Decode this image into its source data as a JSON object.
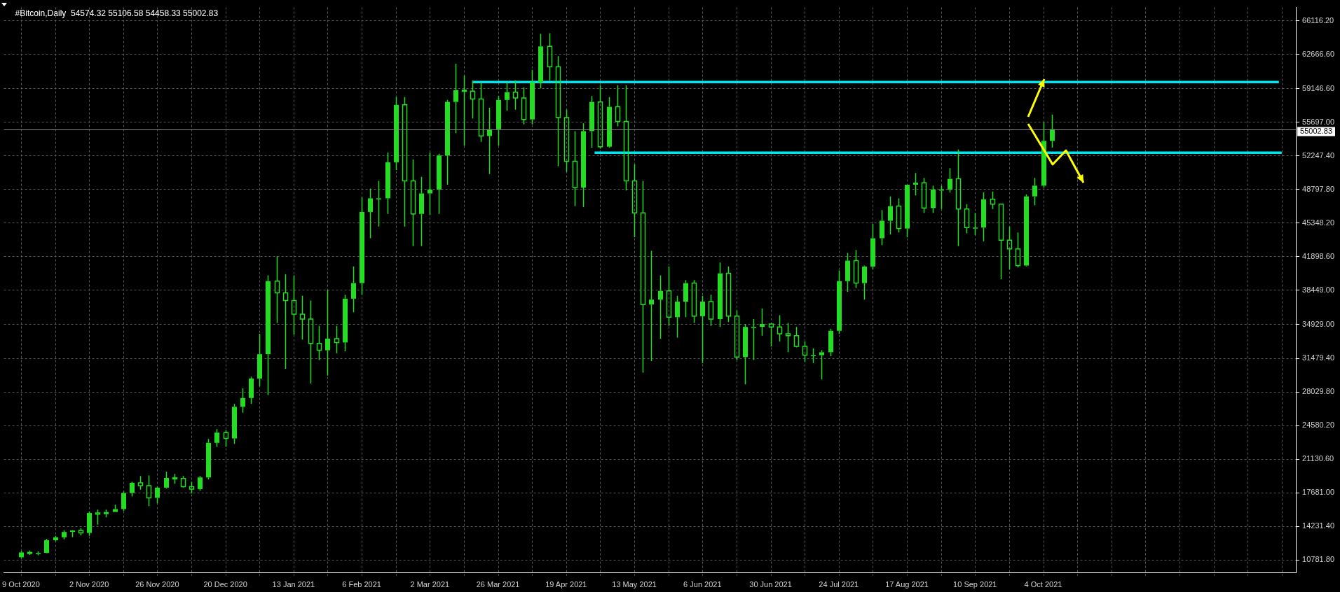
{
  "chart_data": {
    "type": "candlestick",
    "title": "#Bitcoin,Daily  54574.32 55106.58 54458.33 55002.83",
    "color": "#22dd22",
    "x": [
      "2020-10-09",
      "2020-10-12",
      "2020-10-15",
      "2020-10-18",
      "2020-10-21",
      "2020-10-24",
      "2020-10-27",
      "2020-10-30",
      "2020-11-02",
      "2020-11-05",
      "2020-11-08",
      "2020-11-11",
      "2020-11-14",
      "2020-11-17",
      "2020-11-20",
      "2020-11-23",
      "2020-11-26",
      "2020-11-29",
      "2020-12-02",
      "2020-12-05",
      "2020-12-08",
      "2020-12-11",
      "2020-12-14",
      "2020-12-17",
      "2020-12-20",
      "2020-12-23",
      "2020-12-26",
      "2020-12-29",
      "2021-01-01",
      "2021-01-04",
      "2021-01-07",
      "2021-01-10",
      "2021-01-13",
      "2021-01-16",
      "2021-01-19",
      "2021-01-22",
      "2021-01-25",
      "2021-01-28",
      "2021-01-31",
      "2021-02-03",
      "2021-02-06",
      "2021-02-09",
      "2021-02-12",
      "2021-02-15",
      "2021-02-18",
      "2021-02-21",
      "2021-02-24",
      "2021-02-27",
      "2021-03-02",
      "2021-03-05",
      "2021-03-08",
      "2021-03-11",
      "2021-03-14",
      "2021-03-17",
      "2021-03-20",
      "2021-03-23",
      "2021-03-26",
      "2021-03-29",
      "2021-04-01",
      "2021-04-04",
      "2021-04-07",
      "2021-04-10",
      "2021-04-13",
      "2021-04-16",
      "2021-04-19",
      "2021-04-22",
      "2021-04-25",
      "2021-04-28",
      "2021-05-01",
      "2021-05-04",
      "2021-05-07",
      "2021-05-10",
      "2021-05-13",
      "2021-05-16",
      "2021-05-19",
      "2021-05-22",
      "2021-05-25",
      "2021-05-28",
      "2021-05-31",
      "2021-06-03",
      "2021-06-06",
      "2021-06-09",
      "2021-06-12",
      "2021-06-15",
      "2021-06-18",
      "2021-06-21",
      "2021-06-24",
      "2021-06-27",
      "2021-06-30",
      "2021-07-03",
      "2021-07-06",
      "2021-07-09",
      "2021-07-12",
      "2021-07-15",
      "2021-07-18",
      "2021-07-21",
      "2021-07-24",
      "2021-07-27",
      "2021-07-30",
      "2021-08-02",
      "2021-08-05",
      "2021-08-08",
      "2021-08-11",
      "2021-08-14",
      "2021-08-17",
      "2021-08-20",
      "2021-08-23",
      "2021-08-26",
      "2021-08-29",
      "2021-09-01",
      "2021-09-04",
      "2021-09-07",
      "2021-09-10",
      "2021-09-13",
      "2021-09-16",
      "2021-09-19",
      "2021-09-22",
      "2021-09-25",
      "2021-09-28",
      "2021-10-01",
      "2021-10-04",
      "2021-10-07"
    ],
    "ohlc": [
      [
        11050,
        11700,
        10950,
        11550
      ],
      [
        11550,
        11750,
        11300,
        11500
      ],
      [
        11500,
        11650,
        11250,
        11500
      ],
      [
        11500,
        12950,
        11450,
        12800
      ],
      [
        12800,
        13250,
        12700,
        13100
      ],
      [
        13100,
        13800,
        12900,
        13650
      ],
      [
        13650,
        13850,
        13100,
        13800
      ],
      [
        13800,
        14050,
        13300,
        13550
      ],
      [
        13550,
        15750,
        13250,
        15600
      ],
      [
        15600,
        15950,
        14400,
        15480
      ],
      [
        15480,
        15950,
        15150,
        15700
      ],
      [
        15700,
        16450,
        15700,
        16000
      ],
      [
        16000,
        17800,
        15800,
        17650
      ],
      [
        17650,
        18800,
        17300,
        18700
      ],
      [
        18700,
        19400,
        18000,
        18400
      ],
      [
        18400,
        19450,
        16300,
        17150
      ],
      [
        17150,
        18300,
        16600,
        18200
      ],
      [
        18200,
        19850,
        18100,
        19200
      ],
      [
        19200,
        19600,
        18600,
        19150
      ],
      [
        19150,
        19400,
        18200,
        18300
      ],
      [
        18300,
        18800,
        17600,
        18050
      ],
      [
        18050,
        19400,
        17900,
        19250
      ],
      [
        19250,
        23200,
        19050,
        22800
      ],
      [
        22800,
        24200,
        22400,
        23850
      ],
      [
        23850,
        24100,
        22400,
        23250
      ],
      [
        23250,
        26800,
        22700,
        26500
      ],
      [
        26500,
        28400,
        25900,
        27400
      ],
      [
        27400,
        29600,
        26800,
        29400
      ],
      [
        29400,
        34000,
        28600,
        31900
      ],
      [
        31900,
        40000,
        27700,
        39400
      ],
      [
        39400,
        41950,
        35100,
        38200
      ],
      [
        38200,
        40100,
        30400,
        37400
      ],
      [
        37400,
        40000,
        33900,
        36000
      ],
      [
        36000,
        37900,
        33400,
        35500
      ],
      [
        35500,
        37400,
        28900,
        33000
      ],
      [
        33000,
        34800,
        31300,
        32300
      ],
      [
        32300,
        38500,
        29700,
        33500
      ],
      [
        33500,
        34800,
        32000,
        33100
      ],
      [
        33100,
        38000,
        32200,
        37600
      ],
      [
        37600,
        40900,
        36200,
        39200
      ],
      [
        39200,
        48000,
        38000,
        46500
      ],
      [
        46500,
        48900,
        43800,
        47900
      ],
      [
        47900,
        49700,
        45000,
        47900
      ],
      [
        47900,
        52600,
        46300,
        51600
      ],
      [
        51600,
        58300,
        50800,
        57500
      ],
      [
        57500,
        58300,
        45000,
        49700
      ],
      [
        49700,
        51900,
        43000,
        46300
      ],
      [
        46300,
        50100,
        43000,
        48400
      ],
      [
        48400,
        52600,
        46200,
        48800
      ],
      [
        48800,
        52500,
        46300,
        52300
      ],
      [
        52300,
        58000,
        49300,
        57800
      ],
      [
        57800,
        61700,
        54600,
        59000
      ],
      [
        59000,
        60500,
        53300,
        58900
      ],
      [
        58900,
        60000,
        56100,
        58100
      ],
      [
        58100,
        59800,
        53700,
        54300
      ],
      [
        54300,
        57200,
        50400,
        55000
      ],
      [
        55000,
        58400,
        53300,
        58000
      ],
      [
        58000,
        59800,
        56900,
        58800
      ],
      [
        58800,
        60000,
        57000,
        58200
      ],
      [
        58200,
        59300,
        55500,
        56000
      ],
      [
        56000,
        61100,
        55500,
        59800
      ],
      [
        59800,
        64800,
        59200,
        63500
      ],
      [
        63500,
        64850,
        60000,
        61400
      ],
      [
        61400,
        62500,
        51200,
        56200
      ],
      [
        56200,
        57000,
        50600,
        51700
      ],
      [
        51700,
        54800,
        47100,
        49000
      ],
      [
        49000,
        55600,
        47000,
        54800
      ],
      [
        54800,
        58400,
        53100,
        57800
      ],
      [
        57800,
        59500,
        53000,
        53200
      ],
      [
        53200,
        58300,
        53100,
        57300
      ],
      [
        57300,
        59500,
        55300,
        55800
      ],
      [
        55800,
        59500,
        48700,
        49700
      ],
      [
        49700,
        51400,
        43900,
        46400
      ],
      [
        46400,
        49700,
        30000,
        37000
      ],
      [
        37000,
        42500,
        31200,
        37500
      ],
      [
        37500,
        40000,
        33500,
        38400
      ],
      [
        38400,
        40900,
        34800,
        35700
      ],
      [
        35700,
        37900,
        33600,
        37300
      ],
      [
        37300,
        39500,
        35700,
        39200
      ],
      [
        39200,
        39500,
        35100,
        35800
      ],
      [
        35800,
        37900,
        31000,
        37300
      ],
      [
        37300,
        38000,
        34800,
        35500
      ],
      [
        35500,
        41300,
        34700,
        40200
      ],
      [
        40200,
        40900,
        35200,
        35800
      ],
      [
        35800,
        36400,
        31300,
        31600
      ],
      [
        31600,
        35000,
        28800,
        34700
      ],
      [
        34700,
        35500,
        31300,
        34700
      ],
      [
        34700,
        36600,
        33800,
        35000
      ],
      [
        35000,
        35000,
        32700,
        34700
      ],
      [
        34700,
        35900,
        33200,
        34000
      ],
      [
        34000,
        35100,
        32100,
        33800
      ],
      [
        33800,
        34700,
        32600,
        32700
      ],
      [
        32700,
        33200,
        31100,
        31800
      ],
      [
        31800,
        32500,
        31000,
        31800
      ],
      [
        31800,
        32300,
        29300,
        32100
      ],
      [
        32100,
        34500,
        31700,
        34300
      ],
      [
        34300,
        40500,
        34000,
        39400
      ],
      [
        39400,
        42300,
        38300,
        41500
      ],
      [
        41500,
        42600,
        38700,
        39200
      ],
      [
        39200,
        41000,
        37500,
        40900
      ],
      [
        40900,
        45300,
        40600,
        43800
      ],
      [
        43800,
        46700,
        43100,
        45600
      ],
      [
        45600,
        48100,
        44200,
        47100
      ],
      [
        47100,
        47900,
        44400,
        44800
      ],
      [
        44800,
        49300,
        43900,
        49300
      ],
      [
        49300,
        50500,
        48200,
        49500
      ],
      [
        49500,
        50000,
        46400,
        46900
      ],
      [
        46900,
        49200,
        46400,
        48800
      ],
      [
        48800,
        49200,
        46800,
        48800
      ],
      [
        48800,
        51000,
        48500,
        49900
      ],
      [
        49900,
        52900,
        43000,
        46800
      ],
      [
        46800,
        47300,
        44300,
        44900
      ],
      [
        44900,
        46400,
        44100,
        44900
      ],
      [
        44900,
        48500,
        43500,
        47800
      ],
      [
        47800,
        48600,
        46800,
        47300
      ],
      [
        47300,
        47300,
        39600,
        43600
      ],
      [
        43600,
        45000,
        40600,
        42700
      ],
      [
        42700,
        44400,
        40800,
        41000
      ],
      [
        41000,
        48300,
        40900,
        48100
      ],
      [
        48100,
        50000,
        47200,
        49200
      ],
      [
        49200,
        55700,
        49000,
        53800
      ],
      [
        53800,
        56500,
        53100,
        55002.83
      ]
    ],
    "series": [
      {
        "type": "line",
        "color": "#00e5ee",
        "x": [
          "2021-03-17",
          "2021-12-26"
        ],
        "values": [
          59830,
          59830
        ]
      },
      {
        "type": "line",
        "color": "#00e5ee",
        "x": [
          "2021-04-29",
          "2021-12-27"
        ],
        "values": [
          52590,
          52590
        ]
      }
    ],
    "ref_lines": [
      {
        "axis": "y",
        "value": 55002.83,
        "label": "55002.83",
        "color": "#8a8a8a"
      }
    ],
    "xlim": [
      "2020-10-03",
      "2022-01-01"
    ],
    "xticks": [
      {
        "value": "2020-10-09",
        "label": "9 Oct 2020"
      },
      {
        "value": "2020-10-21",
        "label": null
      },
      {
        "value": "2020-11-02",
        "label": "2 Nov 2020"
      },
      {
        "value": "2020-11-14",
        "label": null
      },
      {
        "value": "2020-11-26",
        "label": "26 Nov 2020"
      },
      {
        "value": "2020-12-08",
        "label": null
      },
      {
        "value": "2020-12-20",
        "label": "20 Dec 2020"
      },
      {
        "value": "2021-01-01",
        "label": null
      },
      {
        "value": "2021-01-13",
        "label": "13 Jan 2021"
      },
      {
        "value": "2021-01-25",
        "label": null
      },
      {
        "value": "2021-02-06",
        "label": "6 Feb 2021"
      },
      {
        "value": "2021-02-18",
        "label": null
      },
      {
        "value": "2021-03-02",
        "label": "2 Mar 2021"
      },
      {
        "value": "2021-03-14",
        "label": null
      },
      {
        "value": "2021-03-26",
        "label": "26 Mar 2021"
      },
      {
        "value": "2021-04-07",
        "label": null
      },
      {
        "value": "2021-04-19",
        "label": "19 Apr 2021"
      },
      {
        "value": "2021-05-01",
        "label": null
      },
      {
        "value": "2021-05-13",
        "label": "13 May 2021"
      },
      {
        "value": "2021-05-25",
        "label": null
      },
      {
        "value": "2021-06-06",
        "label": "6 Jun 2021"
      },
      {
        "value": "2021-06-18",
        "label": null
      },
      {
        "value": "2021-06-30",
        "label": "30 Jun 2021"
      },
      {
        "value": "2021-07-12",
        "label": null
      },
      {
        "value": "2021-07-24",
        "label": "24 Jul 2021"
      },
      {
        "value": "2021-08-05",
        "label": null
      },
      {
        "value": "2021-08-17",
        "label": "17 Aug 2021"
      },
      {
        "value": "2021-08-29",
        "label": null
      },
      {
        "value": "2021-09-10",
        "label": "10 Sep 2021"
      },
      {
        "value": "2021-09-22",
        "label": null
      },
      {
        "value": "2021-10-04",
        "label": "4 Oct 2021"
      },
      {
        "value": "2021-10-16",
        "label": null
      },
      {
        "value": "2021-10-28",
        "label": null
      },
      {
        "value": "2021-11-09",
        "label": null
      },
      {
        "value": "2021-11-21",
        "label": null
      },
      {
        "value": "2021-12-03",
        "label": null
      },
      {
        "value": "2021-12-15",
        "label": null
      },
      {
        "value": "2021-12-27",
        "label": null
      }
    ],
    "ylim": [
      9440,
      67500
    ],
    "yticks": [
      {
        "value": 10781.8,
        "label": "10781.80"
      },
      {
        "value": 14231.4,
        "label": "14231.40"
      },
      {
        "value": 17681,
        "label": "17681.00"
      },
      {
        "value": 21130.6,
        "label": "21130.60"
      },
      {
        "value": 24580.2,
        "label": "24580.20"
      },
      {
        "value": 28029.8,
        "label": "28029.80"
      },
      {
        "value": 31479.4,
        "label": "31479.40"
      },
      {
        "value": 34929,
        "label": "34929.00"
      },
      {
        "value": 38449,
        "label": "38449.00"
      },
      {
        "value": 41898.6,
        "label": "41898.60"
      },
      {
        "value": 45348.2,
        "label": "45348.20"
      },
      {
        "value": 48797.8,
        "label": "48797.80"
      },
      {
        "value": 52247.4,
        "label": "52247.40"
      },
      {
        "value": 55697,
        "label": "55697.00"
      },
      {
        "value": 59146.6,
        "label": "59146.60"
      },
      {
        "value": 62666.6,
        "label": "62666.60"
      },
      {
        "value": 66116.2,
        "label": "66116.20"
      }
    ],
    "grid": true
  }
}
